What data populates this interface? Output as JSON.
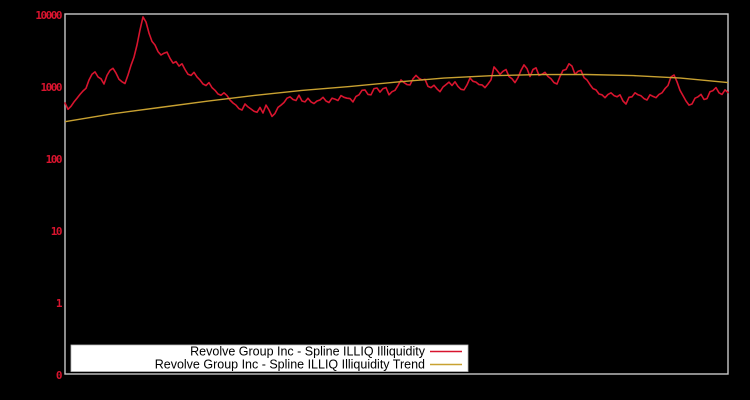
{
  "window": {
    "background": "#000000",
    "title": ""
  },
  "colors": {
    "background": "#000000",
    "plot_border": "#c9c9c9",
    "series_red": "#d8142e",
    "trend_yellow": "#c8a131",
    "axis_label_red": "#d8142e",
    "legend_background": "#ffffff",
    "legend_text": "#000000"
  },
  "chart_data": {
    "type": "line",
    "title": "",
    "xlabel": "",
    "ylabel": "",
    "x_axis": {
      "tick_labels": [],
      "note": "no x tick labels visible"
    },
    "y_axis": {
      "scale": "log",
      "tick_labels": [
        "10000",
        "1000",
        "100",
        "10",
        "1",
        "0"
      ],
      "ylim_top": 10000,
      "label_color": "#d8142e"
    },
    "grid": false,
    "legend": {
      "position": "bottom-inside",
      "background": "#ffffff",
      "text_color": "#000000",
      "items": [
        {
          "label": "Revolve Group Inc - Spline ILLIQ Illiquidity",
          "color": "#d8142e"
        },
        {
          "label": "Revolve Group Inc - Spline ILLIQ Illiquidity Trend",
          "color": "#c8a131"
        }
      ]
    },
    "series": [
      {
        "name": "Revolve Group Inc - Spline ILLIQ Illiquidity",
        "color": "#d8142e",
        "values": [
          600,
          490,
          540,
          620,
          700,
          790,
          880,
          960,
          1250,
          1500,
          1620,
          1380,
          1300,
          1100,
          1450,
          1700,
          1820,
          1560,
          1280,
          1180,
          1120,
          1470,
          2000,
          2600,
          3830,
          6200,
          9400,
          8000,
          5600,
          4300,
          3830,
          3100,
          2780,
          2950,
          3050,
          2500,
          2150,
          2250,
          1950,
          2100,
          1750,
          1500,
          1450,
          1600,
          1380,
          1250,
          1100,
          1050,
          1150,
          980,
          900,
          800,
          770,
          830,
          760,
          660,
          600,
          560,
          500,
          480,
          580,
          530,
          495,
          460,
          445,
          520,
          436,
          560,
          480,
          390,
          430,
          520,
          560,
          610,
          700,
          730,
          670,
          650,
          770,
          640,
          620,
          700,
          620,
          590,
          640,
          660,
          720,
          640,
          610,
          700,
          680,
          650,
          760,
          720,
          700,
          690,
          620,
          740,
          780,
          900,
          910,
          790,
          780,
          950,
          970,
          850,
          950,
          980,
          780,
          860,
          900,
          1050,
          1250,
          1150,
          1080,
          1070,
          1300,
          1450,
          1320,
          1250,
          1280,
          1020,
          980,
          1060,
          940,
          860,
          1000,
          1080,
          1170,
          1050,
          1180,
          1020,
          930,
          910,
          1070,
          1330,
          1200,
          1170,
          1080,
          1070,
          980,
          1100,
          1260,
          1900,
          1700,
          1500,
          1650,
          1750,
          1400,
          1300,
          1150,
          1350,
          1700,
          2030,
          1800,
          1400,
          1750,
          1850,
          1450,
          1500,
          1600,
          1400,
          1300,
          1150,
          1100,
          1400,
          1700,
          1750,
          2100,
          1950,
          1500,
          1650,
          1700,
          1350,
          1250,
          1080,
          950,
          910,
          800,
          780,
          710,
          790,
          830,
          760,
          730,
          780,
          640,
          580,
          720,
          730,
          830,
          780,
          755,
          690,
          660,
          780,
          740,
          710,
          790,
          830,
          950,
          1050,
          1380,
          1470,
          1180,
          900,
          760,
          640,
          560,
          580,
          700,
          730,
          790,
          670,
          690,
          860,
          890,
          980,
          830,
          790,
          910,
          840
        ]
      },
      {
        "name": "Revolve Group Inc - Spline ILLIQ Illiquidity Trend",
        "color": "#c8a131",
        "values": [
          330,
          425,
          519,
          634,
          764,
          897,
          1014,
          1171,
          1328,
          1436,
          1487,
          1490,
          1438,
          1328,
          1150
        ]
      }
    ]
  }
}
